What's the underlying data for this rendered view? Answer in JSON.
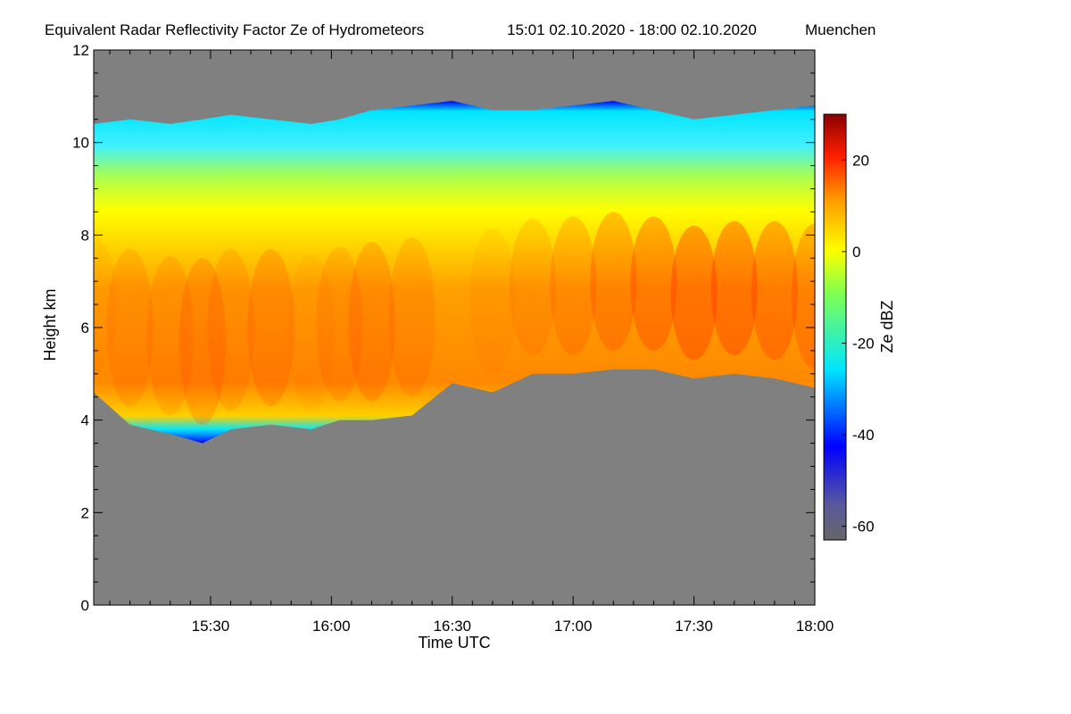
{
  "chart_data": {
    "type": "heatmap",
    "title": "Equivalent Radar Reflectivity Factor Ze of Hydrometeors",
    "period": "15:01 02.10.2020 - 18:00 02.10.2020",
    "location": "Muenchen",
    "xlabel": "Time UTC",
    "ylabel": "Height km",
    "xlim": [
      "15:01",
      "18:00"
    ],
    "xlim_minutes": [
      901,
      1080
    ],
    "ylim": [
      0,
      12
    ],
    "x_ticks": [
      {
        "label": "15:30",
        "value": 930
      },
      {
        "label": "16:00",
        "value": 960
      },
      {
        "label": "16:30",
        "value": 990
      },
      {
        "label": "17:00",
        "value": 1020
      },
      {
        "label": "17:30",
        "value": 1050
      },
      {
        "label": "18:00",
        "value": 1080
      }
    ],
    "y_ticks": [
      {
        "label": "0",
        "value": 0
      },
      {
        "label": "2",
        "value": 2
      },
      {
        "label": "4",
        "value": 4
      },
      {
        "label": "6",
        "value": 6
      },
      {
        "label": "8",
        "value": 8
      },
      {
        "label": "10",
        "value": 10
      },
      {
        "label": "12",
        "value": 12
      }
    ],
    "colorbar": {
      "label": "Ze dBZ",
      "range": [
        -63,
        30
      ],
      "ticks": [
        {
          "label": "20",
          "value": 20
        },
        {
          "label": "0",
          "value": 0
        },
        {
          "label": "-20",
          "value": -20
        },
        {
          "label": "-40",
          "value": -40
        },
        {
          "label": "-60",
          "value": -60
        }
      ]
    },
    "background_color": "#808080",
    "cloud_layer": {
      "time_minutes": [
        901,
        910,
        920,
        928,
        935,
        945,
        955,
        962,
        970,
        980,
        990,
        1000,
        1010,
        1020,
        1030,
        1040,
        1050,
        1060,
        1070,
        1080
      ],
      "base_km": [
        4.6,
        3.9,
        3.7,
        3.5,
        3.8,
        3.9,
        3.8,
        4.0,
        4.0,
        4.1,
        4.8,
        4.6,
        5.0,
        5.0,
        5.1,
        5.1,
        4.9,
        5.0,
        4.9,
        4.7
      ],
      "top_km": [
        10.4,
        10.5,
        10.4,
        10.5,
        10.6,
        10.5,
        10.4,
        10.5,
        10.7,
        10.8,
        10.9,
        10.7,
        10.7,
        10.8,
        10.9,
        10.7,
        10.5,
        10.6,
        10.7,
        10.8
      ],
      "peak_dbz": [
        10,
        12,
        12,
        14,
        12,
        14,
        10,
        12,
        14,
        12,
        8,
        10,
        12,
        14,
        16,
        18,
        20,
        20,
        18,
        16
      ]
    }
  }
}
